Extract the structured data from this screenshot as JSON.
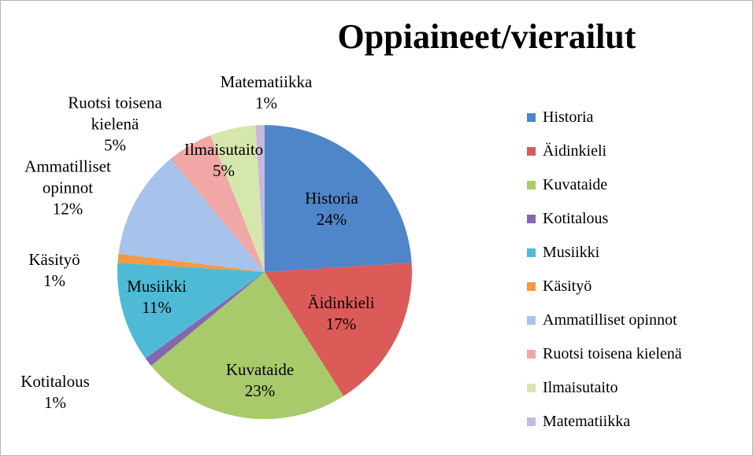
{
  "chart_data": {
    "type": "pie",
    "title": "Oppiaineet/vierailut",
    "categories": [
      "Historia",
      "Äidinkieli",
      "Kuvataide",
      "Kotitalous",
      "Musiikki",
      "Käsityö",
      "Ammatilliset opinnot",
      "Ruotsi toisena kielenä",
      "Ilmaisutaito",
      "Matematiikka"
    ],
    "values": [
      24,
      17,
      23,
      1,
      11,
      1,
      12,
      5,
      5,
      1
    ],
    "value_labels": [
      "24%",
      "17%",
      "23%",
      "1%",
      "11%",
      "1%",
      "12%",
      "5%",
      "5%",
      "1%"
    ],
    "colors": [
      "#4f86c9",
      "#db5b58",
      "#a9ca6a",
      "#8566b0",
      "#4fbad6",
      "#f39a40",
      "#a8c3eb",
      "#f0a7a6",
      "#d6e7ad",
      "#c8b8dc"
    ],
    "legend": "right"
  }
}
